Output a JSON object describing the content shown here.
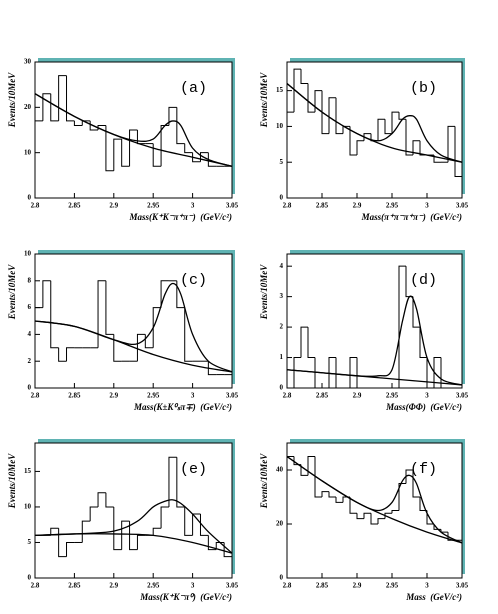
{
  "chart_data": [
    {
      "type": "histogram",
      "label": "(a)",
      "ylabel": "Events/10MeV",
      "xlabel": "Mass(K⁺K⁻π⁺π⁻)  (GeV/c²)",
      "bins": [
        2.8,
        2.81,
        2.82,
        2.83,
        2.84,
        2.85,
        2.86,
        2.87,
        2.88,
        2.89,
        2.9,
        2.91,
        2.92,
        2.93,
        2.94,
        2.95,
        2.96,
        2.97,
        2.98,
        2.99,
        3.0,
        3.01,
        3.02,
        3.03,
        3.04,
        3.05
      ],
      "counts": [
        17,
        23,
        17,
        27,
        17,
        16,
        17,
        15,
        16,
        6,
        13,
        7,
        15,
        12,
        12,
        7,
        16,
        20,
        12,
        10,
        8,
        10,
        7,
        7,
        7
      ],
      "xlim": [
        2.8,
        3.05
      ],
      "xticks": [
        2.8,
        2.85,
        2.9,
        2.95,
        3,
        3.05
      ],
      "ylim": [
        0,
        30
      ],
      "yticks": [
        0,
        10,
        20,
        30
      ],
      "color": "#000000",
      "fit": {
        "x": [
          2.8,
          2.85,
          2.9,
          2.93,
          2.95,
          2.965,
          2.975,
          2.985,
          3.0,
          3.02,
          3.05
        ],
        "values": [
          23,
          18,
          14,
          12.6,
          13,
          16,
          17,
          16,
          11,
          8.5,
          7
        ]
      },
      "background": {
        "x": [
          2.8,
          2.85,
          2.9,
          2.95,
          3.0,
          3.05
        ],
        "values": [
          23,
          18,
          14,
          11,
          9,
          7
        ]
      }
    },
    {
      "type": "histogram",
      "label": "(b)",
      "ylabel": "Events/10MeV",
      "xlabel": "Mass(π⁺π⁻π⁺π⁻)  (GeV/c²)",
      "bins": [
        2.8,
        2.81,
        2.82,
        2.83,
        2.84,
        2.85,
        2.86,
        2.87,
        2.88,
        2.89,
        2.9,
        2.91,
        2.92,
        2.93,
        2.94,
        2.95,
        2.96,
        2.97,
        2.98,
        2.99,
        3.0,
        3.01,
        3.02,
        3.03,
        3.04,
        3.05
      ],
      "counts": [
        12,
        18,
        16,
        12,
        15,
        9,
        14,
        9,
        10,
        6,
        8,
        9,
        8,
        11,
        9,
        12,
        11,
        6,
        8,
        6,
        6,
        5,
        5,
        10,
        3
      ],
      "xlim": [
        2.8,
        3.05
      ],
      "xticks": [
        2.8,
        2.85,
        2.9,
        2.95,
        3,
        3.05
      ],
      "ylim": [
        0,
        19
      ],
      "yticks": [
        0,
        5,
        10,
        15
      ],
      "color": "#000000",
      "fit": {
        "x": [
          2.8,
          2.85,
          2.9,
          2.93,
          2.95,
          2.965,
          2.975,
          2.985,
          3.0,
          3.02,
          3.05
        ],
        "values": [
          16,
          12,
          9,
          8,
          9,
          11,
          11.5,
          11,
          8,
          6,
          5
        ]
      },
      "background": {
        "x": [
          2.8,
          2.85,
          2.9,
          2.95,
          3.0,
          3.05
        ],
        "values": [
          16,
          12,
          9,
          7,
          6,
          5
        ]
      }
    },
    {
      "type": "histogram",
      "label": "(c)",
      "ylabel": "Events/10MeV",
      "xlabel": "Mass(K±K⁰ₛπ∓)  (GeV/c²)",
      "bins": [
        2.8,
        2.81,
        2.82,
        2.83,
        2.84,
        2.85,
        2.86,
        2.87,
        2.88,
        2.89,
        2.9,
        2.91,
        2.92,
        2.93,
        2.94,
        2.95,
        2.96,
        2.97,
        2.98,
        2.99,
        3.0,
        3.01,
        3.02,
        3.03,
        3.04,
        3.05
      ],
      "counts": [
        6,
        8,
        3,
        2,
        3,
        3,
        3,
        3,
        8,
        4,
        2,
        2,
        2,
        4,
        3,
        6,
        8,
        8,
        6,
        2,
        2,
        2,
        1,
        1,
        1
      ],
      "xlim": [
        2.8,
        3.05
      ],
      "xticks": [
        2.8,
        2.85,
        2.9,
        2.95,
        3,
        3.05
      ],
      "ylim": [
        0,
        10
      ],
      "yticks": [
        0,
        2,
        4,
        6,
        8,
        10
      ],
      "color": "#000000",
      "fit": {
        "x": [
          2.8,
          2.85,
          2.9,
          2.93,
          2.95,
          2.965,
          2.975,
          2.985,
          3.0,
          3.02,
          3.05
        ],
        "values": [
          5,
          4.6,
          3.6,
          3.3,
          4.5,
          7,
          7.8,
          7,
          4,
          2,
          1.2
        ]
      },
      "background": {
        "x": [
          2.8,
          2.85,
          2.9,
          2.95,
          3.0,
          3.05
        ],
        "values": [
          5,
          4.6,
          3.6,
          2.5,
          1.7,
          1.2
        ]
      }
    },
    {
      "type": "histogram",
      "label": "(d)",
      "ylabel": "Events/10MeV",
      "xlabel": "Mass(ΦΦ)  (GeV/c²)",
      "bins": [
        2.8,
        2.81,
        2.82,
        2.83,
        2.84,
        2.85,
        2.86,
        2.87,
        2.88,
        2.89,
        2.9,
        2.91,
        2.92,
        2.93,
        2.94,
        2.95,
        2.96,
        2.97,
        2.98,
        2.99,
        3.0,
        3.01,
        3.02,
        3.03,
        3.04,
        3.05
      ],
      "counts": [
        0,
        1,
        2,
        1,
        0,
        0,
        1,
        0,
        0,
        1,
        0,
        0,
        0,
        0,
        0,
        0,
        4,
        3,
        2,
        1,
        0,
        1,
        0,
        0,
        0
      ],
      "xlim": [
        2.8,
        3.05
      ],
      "xticks": [
        2.8,
        2.85,
        2.9,
        2.95,
        3,
        3.05
      ],
      "ylim": [
        0,
        4.4
      ],
      "yticks": [
        0,
        1,
        2,
        3,
        4
      ],
      "color": "#000000",
      "fit": {
        "x": [
          2.8,
          2.85,
          2.9,
          2.93,
          2.95,
          2.965,
          2.975,
          2.985,
          3.0,
          3.02,
          3.05
        ],
        "values": [
          0.6,
          0.5,
          0.4,
          0.4,
          0.6,
          2.2,
          3,
          2.6,
          1,
          0.3,
          0.1
        ]
      },
      "background": {
        "x": [
          2.8,
          2.85,
          2.9,
          2.95,
          3.0,
          3.05
        ],
        "values": [
          0.6,
          0.5,
          0.4,
          0.3,
          0.2,
          0.1
        ]
      }
    },
    {
      "type": "histogram",
      "label": "(e)",
      "ylabel": "Events/10MeV",
      "xlabel": "Mass(K⁺K⁻π⁰)  (GeV/c²)",
      "bins": [
        2.8,
        2.81,
        2.82,
        2.83,
        2.84,
        2.85,
        2.86,
        2.87,
        2.88,
        2.89,
        2.9,
        2.91,
        2.92,
        2.93,
        2.94,
        2.95,
        2.96,
        2.97,
        2.98,
        2.99,
        3.0,
        3.01,
        3.02,
        3.03,
        3.04,
        3.05
      ],
      "counts": [
        6,
        6,
        7,
        3,
        5,
        5,
        8,
        10,
        12,
        10,
        4,
        8,
        4,
        6,
        6,
        7,
        10,
        17,
        10,
        6,
        9,
        6,
        4,
        5,
        3
      ],
      "xlim": [
        2.8,
        3.05
      ],
      "xticks": [
        2.8,
        2.85,
        2.9,
        2.95,
        3,
        3.05
      ],
      "ylim": [
        0,
        19
      ],
      "yticks": [
        0,
        5,
        10,
        15
      ],
      "color": "#000000",
      "fit": {
        "x": [
          2.8,
          2.85,
          2.9,
          2.93,
          2.95,
          2.965,
          2.975,
          2.985,
          3.0,
          3.02,
          3.05
        ],
        "values": [
          6,
          6.2,
          6.6,
          8,
          10,
          10.8,
          11,
          10.5,
          9,
          6.5,
          3.5
        ]
      },
      "background": {
        "x": [
          2.8,
          2.85,
          2.9,
          2.95,
          3.0,
          3.05
        ],
        "values": [
          6,
          6.2,
          6.2,
          6,
          5,
          3.5
        ]
      }
    },
    {
      "type": "histogram",
      "label": "(f)",
      "ylabel": "Events/10MeV",
      "xlabel": "Mass  (GeV/c²)",
      "bins": [
        2.8,
        2.81,
        2.82,
        2.83,
        2.84,
        2.85,
        2.86,
        2.87,
        2.88,
        2.89,
        2.9,
        2.91,
        2.92,
        2.93,
        2.94,
        2.95,
        2.96,
        2.97,
        2.98,
        2.99,
        3.0,
        3.01,
        3.02,
        3.03,
        3.04,
        3.05
      ],
      "counts": [
        45,
        42,
        38,
        45,
        30,
        32,
        30,
        28,
        30,
        24,
        22,
        24,
        20,
        22,
        24,
        25,
        35,
        40,
        30,
        25,
        20,
        18,
        17,
        14,
        14
      ],
      "xlim": [
        2.8,
        3.05
      ],
      "xticks": [
        2.8,
        2.85,
        2.9,
        2.95,
        3,
        3.05
      ],
      "ylim": [
        0,
        50
      ],
      "yticks": [
        0,
        20,
        40
      ],
      "color": "#000000",
      "fit": {
        "x": [
          2.8,
          2.85,
          2.9,
          2.93,
          2.95,
          2.965,
          2.975,
          2.985,
          3.0,
          3.02,
          3.05
        ],
        "values": [
          45,
          36,
          28,
          25,
          28,
          36,
          38,
          35,
          24,
          17,
          13
        ]
      },
      "background": {
        "x": [
          2.8,
          2.85,
          2.9,
          2.95,
          3.0,
          3.05
        ],
        "values": [
          45,
          36,
          28,
          22,
          17,
          13
        ]
      }
    }
  ]
}
